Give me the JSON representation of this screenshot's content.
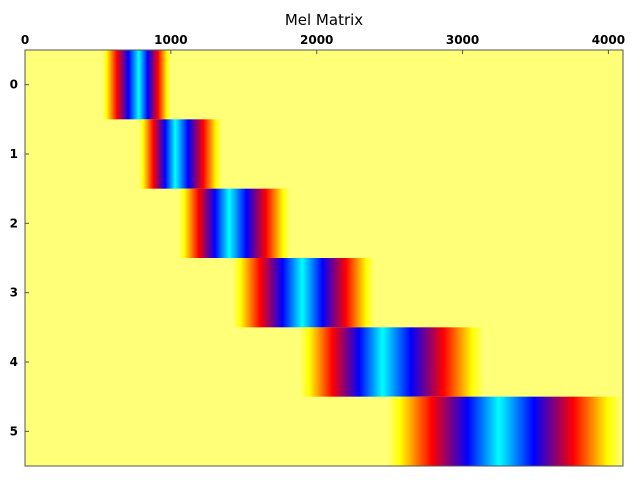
{
  "chart_data": {
    "type": "heatmap",
    "title": "Mel Matrix",
    "xlabel": "",
    "ylabel": "",
    "x_ticks": [
      0,
      1000,
      2000,
      3000,
      4000
    ],
    "x_tick_labels": [
      "0",
      "1000",
      "2000",
      "3000",
      "4000"
    ],
    "xlim": [
      0,
      4100
    ],
    "x_axis_position": "top",
    "rows": [
      0,
      1,
      2,
      3,
      4,
      5
    ],
    "row_labels": [
      "0",
      "1",
      "2",
      "3",
      "4",
      "5"
    ],
    "filters": [
      {
        "row": 0,
        "start": 530,
        "center": 780,
        "end": 1000
      },
      {
        "row": 1,
        "start": 780,
        "center": 1030,
        "end": 1350
      },
      {
        "row": 2,
        "start": 1050,
        "center": 1400,
        "end": 1820
      },
      {
        "row": 3,
        "start": 1420,
        "center": 1900,
        "end": 2400
      },
      {
        "row": 4,
        "start": 1880,
        "center": 2450,
        "end": 3150
      },
      {
        "row": 5,
        "start": 2480,
        "center": 3250,
        "end": 4100
      }
    ],
    "colormap": [
      "#ffff80",
      "#ffff00",
      "#ff0000",
      "#0000ff",
      "#00ffff"
    ],
    "background_color": "#ffff78",
    "grid": false,
    "legend": "none"
  }
}
